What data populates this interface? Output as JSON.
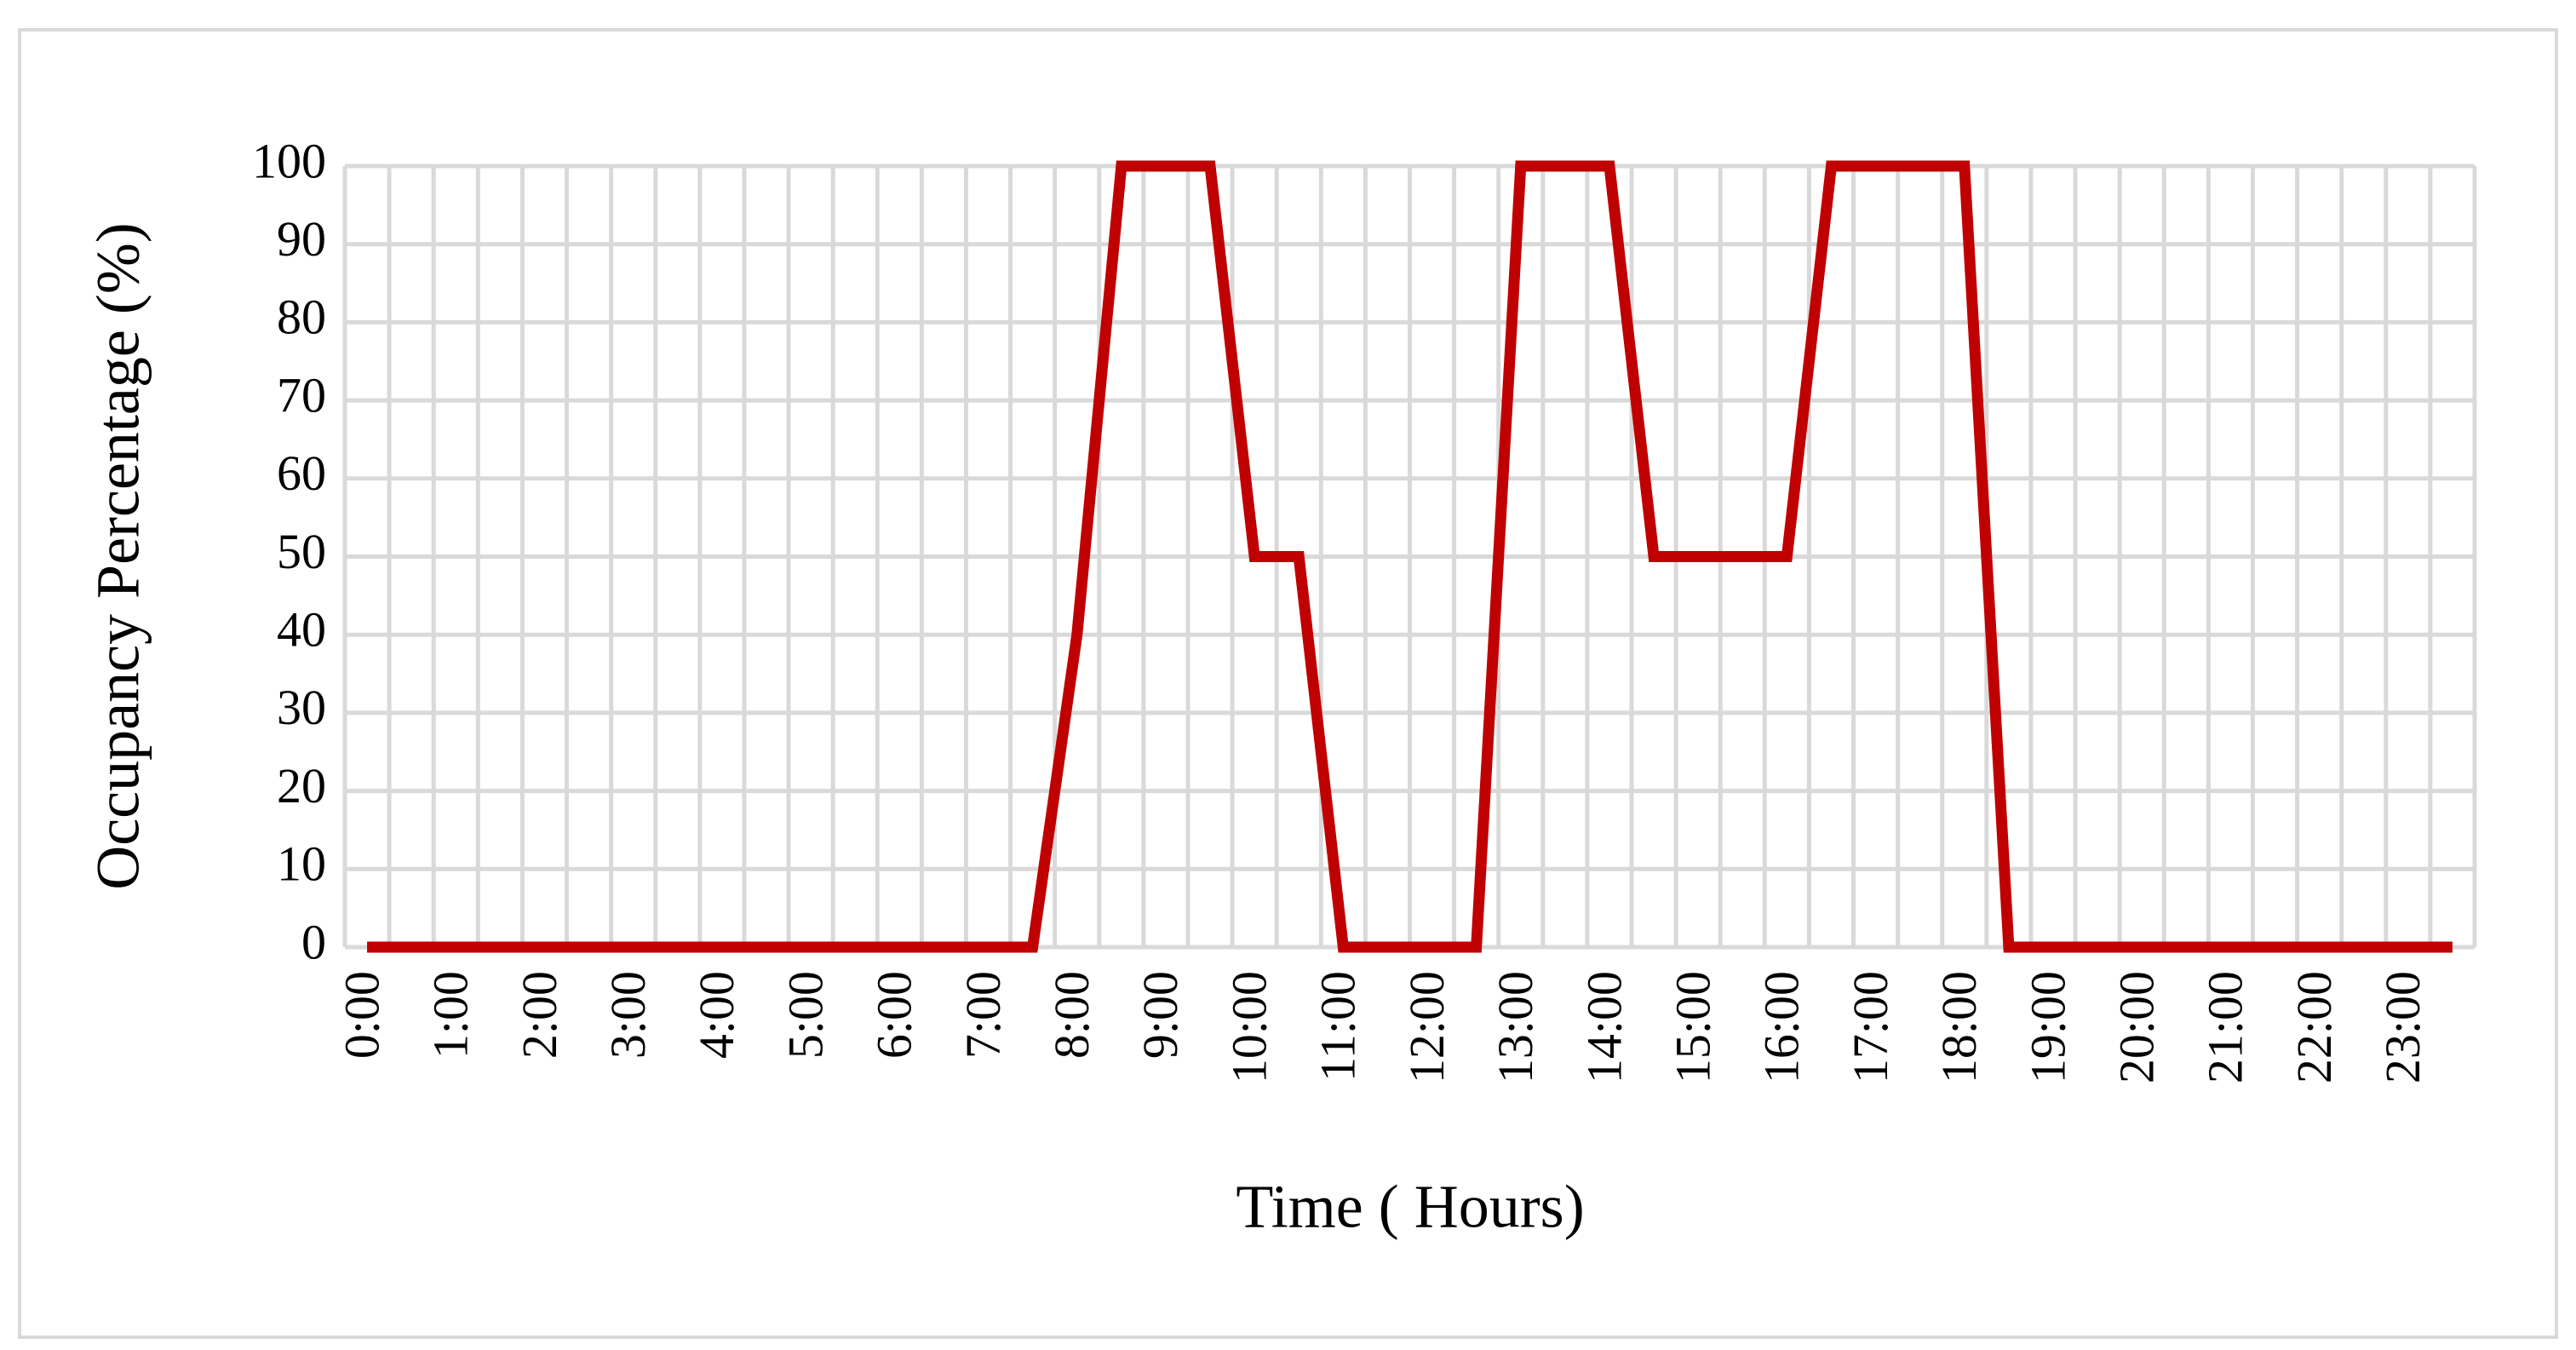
{
  "chart_data": {
    "type": "line",
    "x_label": "Time ( Hours)",
    "y_label": "Occupancy Percentage (%)",
    "categories": [
      "0:00",
      null,
      "1:00",
      null,
      "2:00",
      null,
      "3:00",
      null,
      "4:00",
      null,
      "5:00",
      null,
      "6:00",
      null,
      "7:00",
      null,
      "8:00",
      null,
      "9:00",
      null,
      "10:00",
      null,
      "11:00",
      null,
      "12:00",
      null,
      "13:00",
      null,
      "14:00",
      null,
      "15:00",
      null,
      "16:00",
      null,
      "17:00",
      null,
      "18:00",
      null,
      "19:00",
      null,
      "20:00",
      null,
      "21:00",
      null,
      "22:00",
      null,
      "23:00",
      null
    ],
    "series": [
      {
        "color": "#c00000",
        "values": [
          0,
          0,
          0,
          0,
          0,
          0,
          0,
          0,
          0,
          0,
          0,
          0,
          0,
          0,
          0,
          0,
          40,
          100,
          100,
          100,
          50,
          50,
          0,
          0,
          0,
          0,
          100,
          100,
          100,
          50,
          50,
          50,
          50,
          100,
          100,
          100,
          100,
          0,
          0,
          0,
          0,
          0,
          0,
          0,
          0,
          0,
          0,
          0
        ]
      }
    ],
    "ylim": [
      0,
      100
    ],
    "yticks": [
      0,
      10,
      20,
      30,
      40,
      50,
      60,
      70,
      80,
      90,
      100
    ],
    "grid": true
  }
}
